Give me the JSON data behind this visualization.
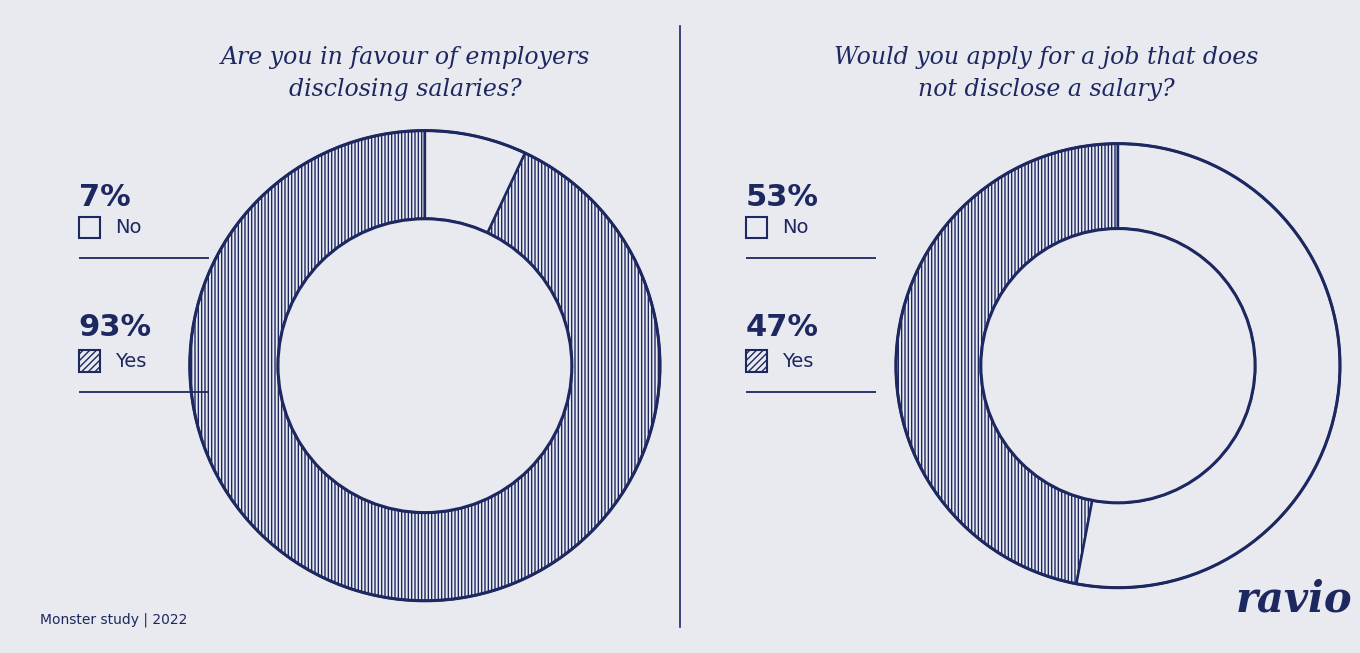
{
  "bg_color": "#e8eaf0",
  "dark_navy": "#1e2860",
  "chart1": {
    "title": "Are you in favour of employers\ndisclosing salaries?",
    "no_pct": 7,
    "yes_pct": 93,
    "no_label": "No",
    "yes_label": "Yes"
  },
  "chart2": {
    "title": "Would you apply for a job that does\nnot disclose a salary?",
    "no_pct": 53,
    "yes_pct": 47,
    "no_label": "No",
    "yes_label": "Yes"
  },
  "footer_left": "Monster study | 2022",
  "footer_right": "ravio"
}
